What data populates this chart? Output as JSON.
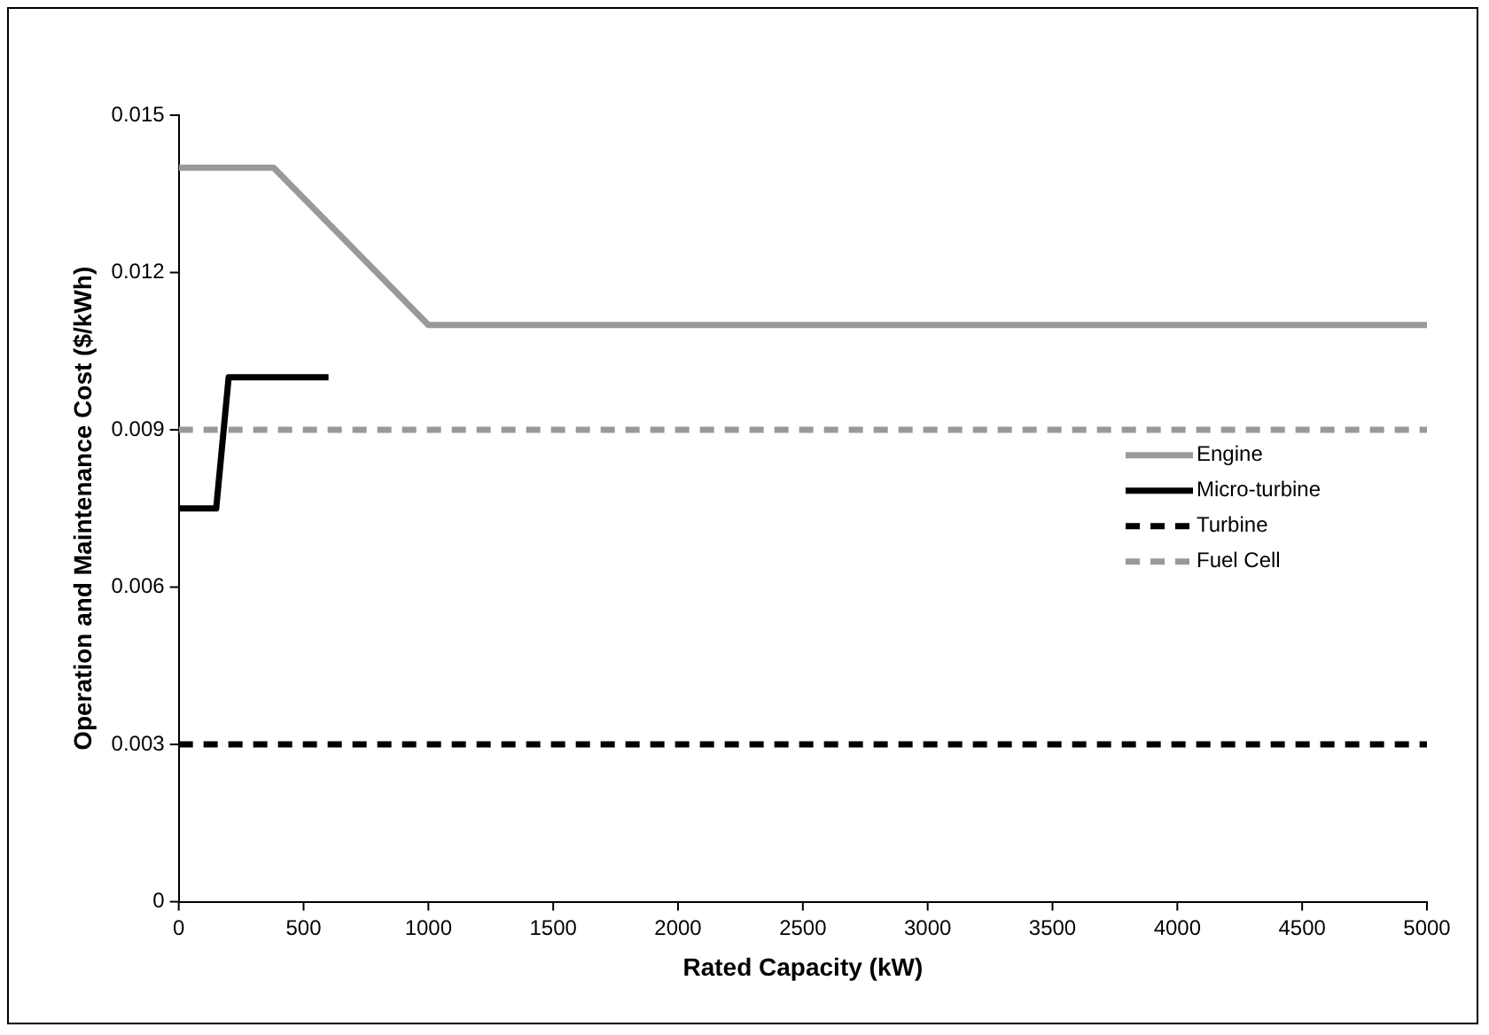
{
  "chart_data": {
    "type": "line",
    "xlabel": "Rated Capacity (kW)",
    "ylabel": "Operation and Maintenance Cost ($/kWh)",
    "xlim": [
      0,
      5000
    ],
    "xticks": [
      0,
      500,
      1000,
      1500,
      2000,
      2500,
      3000,
      3500,
      4000,
      4500,
      5000
    ],
    "ylim": [
      0,
      0.015
    ],
    "yticks": [
      0,
      0.003,
      0.006,
      0.009,
      0.012,
      0.015
    ],
    "grid": false,
    "legend": "right",
    "marker": "none",
    "series": [
      {
        "name": "Engine",
        "color": "#999999",
        "line_style": "solid",
        "x": [
          0,
          380,
          1000,
          5000
        ],
        "values": [
          0.014,
          0.014,
          0.011,
          0.011
        ]
      },
      {
        "name": "Micro-turbine",
        "color": "#000000",
        "line_style": "solid",
        "x": [
          0,
          150,
          200,
          600
        ],
        "values": [
          0.0075,
          0.0075,
          0.01,
          0.01
        ]
      },
      {
        "name": "Turbine",
        "color": "#000000",
        "line_style": "dashed",
        "x": [
          0,
          5000
        ],
        "values": [
          0.003,
          0.003
        ]
      },
      {
        "name": "Fuel Cell",
        "color": "#999999",
        "line_style": "dashed",
        "x": [
          0,
          5000
        ],
        "values": [
          0.009,
          0.009
        ]
      }
    ]
  }
}
